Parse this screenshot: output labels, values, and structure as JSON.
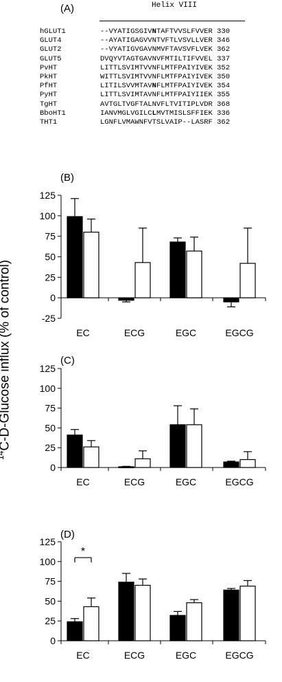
{
  "panel_a": {
    "label": "(A)",
    "helix_title": "Helix VIII",
    "rows": [
      {
        "name": "hGLUT1",
        "pre": "--VYATIGSGIV",
        "bold": "N",
        "post": "TAFTVVSLFVVER",
        "num": "330"
      },
      {
        "name": "GLUT4",
        "pre": "--AYATIGAGVVNTVFTLVSVLLVER",
        "bold": "",
        "post": "",
        "num": "346"
      },
      {
        "name": "GLUT2",
        "pre": "--VYATIGVGAVNMVFTAVSVFLVEK",
        "bold": "",
        "post": "",
        "num": "362"
      },
      {
        "name": "GLUT5",
        "pre": "DVQYVTAGTGAVNVFMTILTIFVVEL",
        "bold": "",
        "post": "",
        "num": "337"
      },
      {
        "name": "PvHT",
        "pre": "LITTLSVIMTVVNFLMTFPAIYIVEK",
        "bold": "",
        "post": "",
        "num": "352"
      },
      {
        "name": "PkHT",
        "pre": "WITTLSVIMTVVNFLMTFPAIYIVEK",
        "bold": "",
        "post": "",
        "num": "350"
      },
      {
        "name": "PfHT",
        "pre": "LITILSVVMTAV",
        "bold": "N",
        "post": "FLMTFPAIYIVEK",
        "num": "354"
      },
      {
        "name": "PyHT",
        "pre": "LITTLSVIMTAVNFLMTFPAIYIIEK",
        "bold": "",
        "post": "",
        "num": "355"
      },
      {
        "name": "TgHT",
        "pre": "AVTGLTVGFTALNVFLTVITIPLVDR",
        "bold": "",
        "post": "",
        "num": "368"
      },
      {
        "name": "BboHT1",
        "pre": "IANVMGLVGILC",
        "bold": "L",
        "post": "MVTMISLSFFIEK",
        "num": "336"
      },
      {
        "name": "THT1",
        "pre": "LGNFLVMAWNFVTSLVAIP--LASRF",
        "bold": "",
        "post": "",
        "num": "362"
      }
    ]
  },
  "shared_ylabel_super": "14",
  "shared_ylabel_text": "C-D-Glucose influx (% of control)",
  "significance_marker": "*",
  "colors": {
    "filled": "#000000",
    "open": "#ffffff"
  },
  "chart_data": [
    {
      "type": "bar",
      "label": "(B)",
      "categories": [
        "EC",
        "ECG",
        "EGC",
        "EGCG"
      ],
      "ylim": [
        -25,
        125
      ],
      "yticks": [
        "-25",
        "0",
        "25",
        "50",
        "75",
        "100",
        "125"
      ],
      "series": [
        {
          "fill": "black",
          "values": [
            99,
            -3,
            68,
            -5
          ],
          "errors": [
            22,
            2,
            5,
            6
          ]
        },
        {
          "fill": "white",
          "values": [
            80,
            43,
            57,
            42
          ],
          "errors": [
            16,
            42,
            17,
            43
          ]
        }
      ]
    },
    {
      "type": "bar",
      "label": "(C)",
      "categories": [
        "EC",
        "ECG",
        "EGC",
        "EGCG"
      ],
      "ylim": [
        0,
        125
      ],
      "yticks": [
        "0",
        "25",
        "50",
        "75",
        "100",
        "125"
      ],
      "series": [
        {
          "fill": "black",
          "values": [
            41,
            1,
            54,
            7
          ],
          "errors": [
            7,
            0.5,
            24,
            1
          ]
        },
        {
          "fill": "white",
          "values": [
            26,
            11,
            54,
            10
          ],
          "errors": [
            8,
            10,
            20,
            10
          ]
        }
      ]
    },
    {
      "type": "bar",
      "label": "(D)",
      "categories": [
        "EC",
        "ECG",
        "EGC",
        "EGCG"
      ],
      "ylim": [
        0,
        125
      ],
      "yticks": [
        "0",
        "25",
        "50",
        "75",
        "100",
        "125"
      ],
      "series": [
        {
          "fill": "black",
          "values": [
            24,
            74,
            32,
            64
          ],
          "errors": [
            4,
            11,
            5,
            2
          ]
        },
        {
          "fill": "white",
          "values": [
            43,
            70,
            48,
            69
          ],
          "errors": [
            11,
            8,
            4,
            7
          ]
        }
      ],
      "annotation": {
        "text": "*",
        "between_category": "EC"
      }
    }
  ]
}
